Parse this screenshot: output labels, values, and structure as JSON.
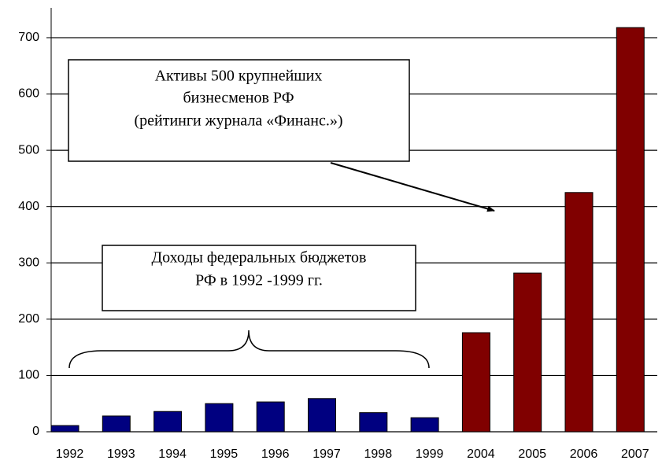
{
  "chart_data": {
    "type": "bar",
    "categories": [
      "1992",
      "1993",
      "1994",
      "1995",
      "1996",
      "1997",
      "1998",
      "1999",
      "2004",
      "2005",
      "2006",
      "2007"
    ],
    "values": [
      11,
      28,
      36,
      50,
      53,
      59,
      34,
      25,
      176,
      282,
      425,
      718
    ],
    "colors": [
      "#000080",
      "#000080",
      "#000080",
      "#000080",
      "#000080",
      "#000080",
      "#000080",
      "#000080",
      "#800000",
      "#800000",
      "#800000",
      "#800000"
    ],
    "ylim": [
      0,
      753
    ],
    "yticks": [
      0,
      100,
      200,
      300,
      400,
      500,
      600,
      700
    ],
    "grid": true,
    "annotations": [
      {
        "lines": [
          "Активы 500 крупнейших",
          "бизнесменов РФ",
          "(рейтинги журнала «Финанс.»)"
        ]
      },
      {
        "lines": [
          "Доходы федеральных бюджетов",
          "РФ в  1992 -1999 гг."
        ]
      }
    ]
  }
}
